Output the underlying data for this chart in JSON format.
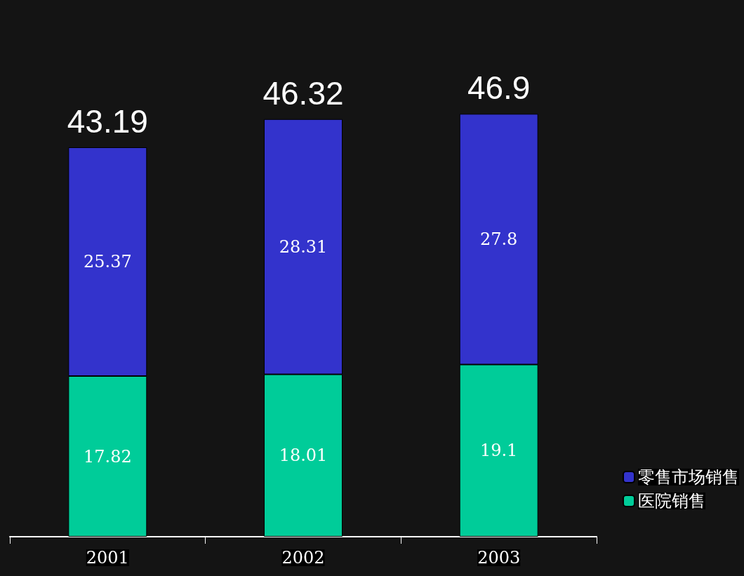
{
  "chart_data": {
    "type": "bar",
    "stacked": true,
    "categories": [
      "2001",
      "2002",
      "2003"
    ],
    "series": [
      {
        "name": "医院销售",
        "color": "#00cc99",
        "values": [
          17.82,
          18.01,
          19.1
        ]
      },
      {
        "name": "零售市场销售",
        "color": "#3333cc",
        "values": [
          25.37,
          28.31,
          27.8
        ]
      }
    ],
    "totals": [
      "43.19",
      "46.32",
      "46.9"
    ],
    "data_labels": true,
    "legend": "bottom right"
  }
}
